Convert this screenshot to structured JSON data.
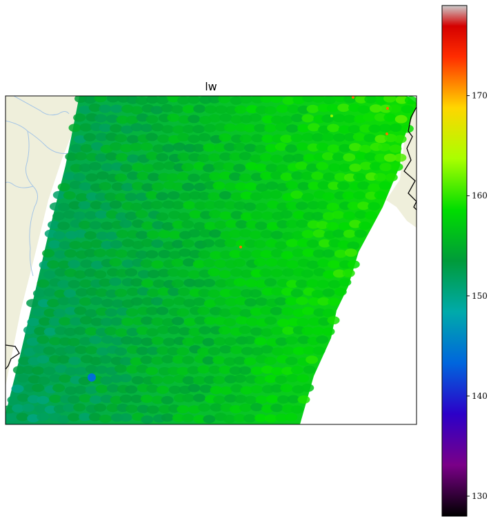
{
  "title": "lw",
  "colorbar": {
    "ticks": [
      130,
      140,
      150,
      160,
      170
    ],
    "vmin": 128,
    "vmax": 179,
    "colormap": "nipy_spectral",
    "stops": [
      [
        0.0,
        "#000000"
      ],
      [
        0.1,
        "#7a0088"
      ],
      [
        0.2,
        "#2c00c8"
      ],
      [
        0.3,
        "#0066dd"
      ],
      [
        0.4,
        "#00aaaa"
      ],
      [
        0.5,
        "#009b3a"
      ],
      [
        0.6,
        "#00dd00"
      ],
      [
        0.7,
        "#aaff00"
      ],
      [
        0.8,
        "#ffd600"
      ],
      [
        0.9,
        "#ff2c00"
      ],
      [
        0.96,
        "#d40000"
      ],
      [
        1.0,
        "#cccccc"
      ]
    ]
  },
  "colors": {
    "land": "#efefdb",
    "rivers": "#a3c4e6",
    "coastline": "#000000",
    "ocean": "#ffffff"
  },
  "swath": {
    "dominant_range": [
      150,
      161
    ],
    "west_side_value": 152,
    "east_side_value": 159,
    "edge_high_value": 163,
    "outlier_low_value": 144,
    "outlier_high_value": 172
  }
}
